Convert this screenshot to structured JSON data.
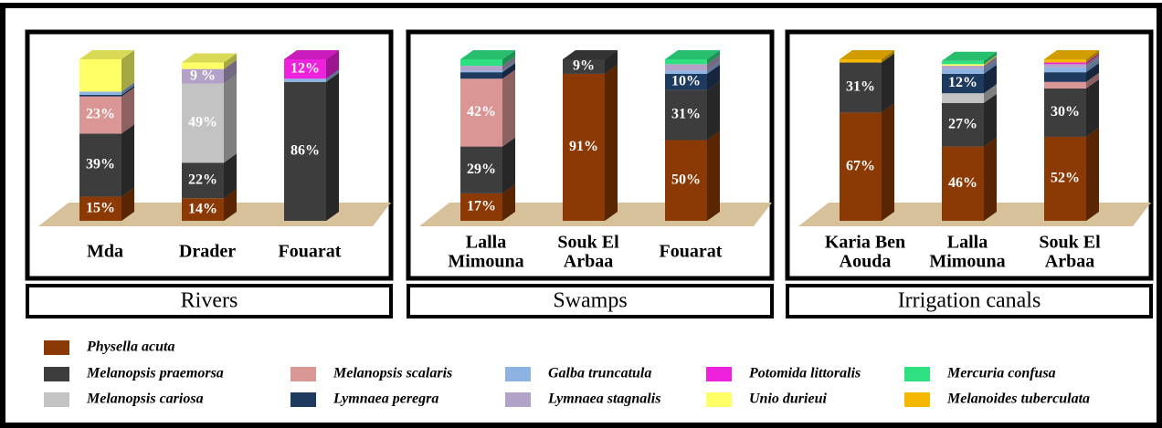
{
  "chart_data": [
    {
      "type": "bar",
      "stacked": true,
      "title": "Rivers",
      "categories": [
        [
          "Mda"
        ],
        [
          "Drader"
        ],
        [
          "Fouarat"
        ]
      ],
      "series": [
        {
          "values": [
            15,
            14,
            null
          ],
          "value_labels": [
            "15%",
            "14%",
            null
          ]
        },
        {
          "values": [
            39,
            22,
            86
          ],
          "value_labels": [
            "39%",
            "22%",
            "86%"
          ]
        },
        {
          "values": [
            null,
            49,
            null
          ],
          "value_labels": [
            null,
            "49%",
            null
          ]
        },
        {
          "values": [
            23,
            null,
            null
          ],
          "value_labels": [
            "23%",
            null,
            null
          ]
        },
        {
          "values": [
            1,
            null,
            null
          ],
          "value_labels": [
            null,
            null,
            null
          ]
        },
        {
          "values": [
            2,
            null,
            2
          ],
          "value_labels": [
            null,
            null,
            null
          ]
        },
        {
          "values": [
            null,
            9,
            null
          ],
          "value_labels": [
            null,
            "9 %",
            null
          ]
        },
        {
          "values": [
            null,
            null,
            12
          ],
          "value_labels": [
            null,
            null,
            "12%"
          ]
        },
        {
          "values": [
            20,
            4,
            null
          ],
          "value_labels": [
            null,
            null,
            null
          ]
        },
        {
          "values": [
            null,
            null,
            null
          ],
          "value_labels": [
            null,
            null,
            null
          ]
        },
        {
          "values": [
            null,
            null,
            null
          ],
          "value_labels": [
            null,
            null,
            null
          ]
        }
      ]
    },
    {
      "type": "bar",
      "stacked": true,
      "title": "Swamps",
      "categories": [
        [
          "Lalla",
          "Mimouna"
        ],
        [
          "Souk El",
          "Arbaa"
        ],
        [
          "Fouarat"
        ]
      ],
      "series": [
        {
          "values": [
            17,
            91,
            50
          ],
          "value_labels": [
            "17%",
            "91%",
            "50%"
          ]
        },
        {
          "values": [
            29,
            9,
            31
          ],
          "value_labels": [
            "29%",
            "9%",
            "31%"
          ]
        },
        {
          "values": [
            null,
            null,
            null
          ],
          "value_labels": [
            null,
            null,
            null
          ]
        },
        {
          "values": [
            42,
            null,
            null
          ],
          "value_labels": [
            "42%",
            null,
            null
          ]
        },
        {
          "values": [
            4,
            null,
            10
          ],
          "value_labels": [
            null,
            null,
            "10%"
          ]
        },
        {
          "values": [
            1,
            null,
            2
          ],
          "value_labels": [
            null,
            null,
            null
          ]
        },
        {
          "values": [
            3,
            null,
            4
          ],
          "value_labels": [
            null,
            null,
            null
          ]
        },
        {
          "values": [
            null,
            null,
            null
          ],
          "value_labels": [
            null,
            null,
            null
          ]
        },
        {
          "values": [
            null,
            null,
            null
          ],
          "value_labels": [
            null,
            null,
            null
          ]
        },
        {
          "values": [
            4,
            null,
            3
          ],
          "value_labels": [
            null,
            null,
            null
          ]
        },
        {
          "values": [
            null,
            null,
            null
          ],
          "value_labels": [
            null,
            null,
            null
          ]
        }
      ]
    },
    {
      "type": "bar",
      "stacked": true,
      "title": "Irrigation canals",
      "categories": [
        [
          "Karia Ben",
          "Aouda"
        ],
        [
          "Lalla",
          "Mimouna"
        ],
        [
          "Souk El",
          "Arbaa"
        ]
      ],
      "series": [
        {
          "values": [
            67,
            46,
            52
          ],
          "value_labels": [
            "67%",
            "46%",
            "52%"
          ]
        },
        {
          "values": [
            31,
            27,
            30
          ],
          "value_labels": [
            "31%",
            "27%",
            "30%"
          ]
        },
        {
          "values": [
            null,
            6,
            null
          ],
          "value_labels": [
            null,
            null,
            null
          ]
        },
        {
          "values": [
            null,
            null,
            4
          ],
          "value_labels": [
            null,
            null,
            null
          ]
        },
        {
          "values": [
            null,
            12,
            6
          ],
          "value_labels": [
            null,
            "12%",
            null
          ]
        },
        {
          "values": [
            null,
            3,
            3
          ],
          "value_labels": [
            null,
            null,
            null
          ]
        },
        {
          "values": [
            null,
            2,
            2
          ],
          "value_labels": [
            null,
            null,
            null
          ]
        },
        {
          "values": [
            null,
            null,
            1
          ],
          "value_labels": [
            null,
            null,
            null
          ]
        },
        {
          "values": [
            null,
            1,
            null
          ],
          "value_labels": [
            null,
            null,
            null
          ]
        },
        {
          "values": [
            null,
            2,
            null
          ],
          "value_labels": [
            null,
            null,
            null
          ]
        },
        {
          "values": [
            2,
            null,
            2
          ],
          "value_labels": [
            null,
            null,
            null
          ]
        }
      ]
    }
  ],
  "legend": [
    {
      "name": "Physella acuta",
      "color": "#8b3a05"
    },
    {
      "name": "Melanopsis praemorsa",
      "color": "#3d3d3d"
    },
    {
      "name": "Melanopsis cariosa",
      "color": "#c3c3c3"
    },
    {
      "name": "Melanopsis scalaris",
      "color": "#d99694"
    },
    {
      "name": "Lymnaea peregra",
      "color": "#1f3a5f"
    },
    {
      "name": "Galba truncatula",
      "color": "#8db3e2"
    },
    {
      "name": "Lymnaea stagnalis",
      "color": "#b3a2c7"
    },
    {
      "name": "Potomida littoralis",
      "color": "#ee22dd"
    },
    {
      "name": "Unio durieui",
      "color": "#ffff66"
    },
    {
      "name": "Mercuria confusa",
      "color": "#2ee080"
    },
    {
      "name": "Melanoides tuberculata",
      "color": "#f5b800"
    }
  ]
}
